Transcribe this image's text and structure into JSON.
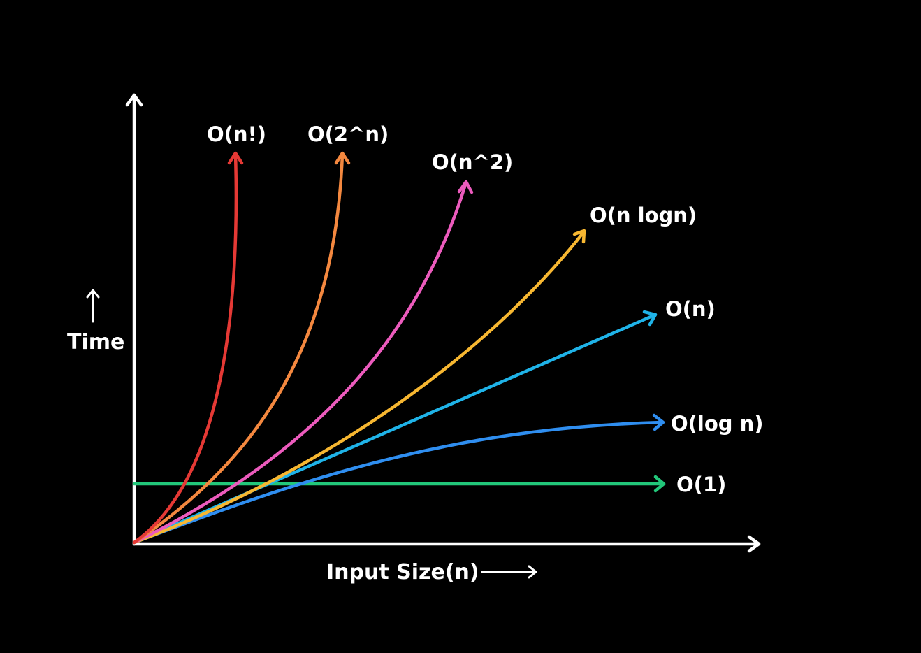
{
  "axes": {
    "y_label": "Time",
    "x_label": "Input Size(n)"
  },
  "curves": [
    {
      "key": "factorial",
      "label": "O(n!)",
      "color": "#e53935"
    },
    {
      "key": "exponential",
      "label": "O(2^n)",
      "color": "#f4883f"
    },
    {
      "key": "quadratic",
      "label": "O(n^2)",
      "color": "#ec5bbd"
    },
    {
      "key": "nlogn",
      "label": "O(n logn)",
      "color": "#f7b731"
    },
    {
      "key": "linear",
      "label": "O(n)",
      "color": "#1fb3e8"
    },
    {
      "key": "log",
      "label": "O(log n)",
      "color": "#2f8ef0"
    },
    {
      "key": "constant",
      "label": "O(1)",
      "color": "#22c77a"
    }
  ],
  "axis_color": "#ffffff",
  "background": "#000000"
}
